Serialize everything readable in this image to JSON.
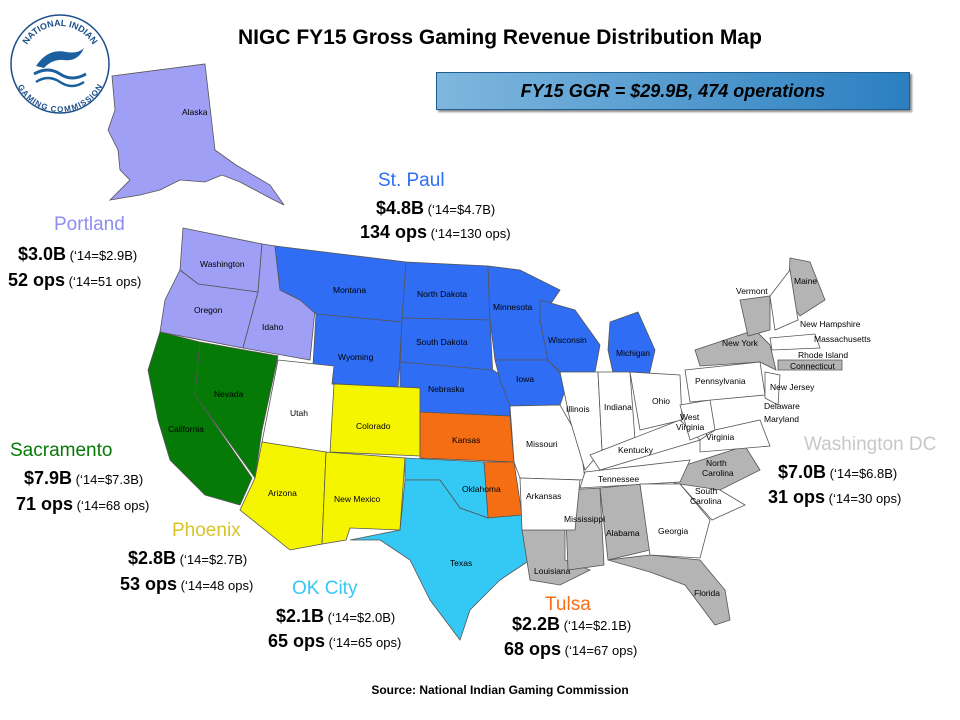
{
  "title": "NIGC FY15 Gross Gaming Revenue Distribution Map",
  "banner": "FY15 GGR = $29.9B, 474 operations",
  "source": "Source: National Indian Gaming Commission",
  "logo": {
    "top_text": "NATIONAL INDIAN",
    "bottom_text": "GAMING COMMISSION"
  },
  "colors": {
    "portland": "#9f9ff5",
    "st_paul": "#2f6df5",
    "sacramento": "#067a06",
    "phoenix": "#f5f500",
    "ok_city": "#34c9f5",
    "tulsa": "#f56e14",
    "washington_dc": "#b4b4b4",
    "unassigned": "#ffffff"
  },
  "regions": [
    {
      "id": "portland",
      "name": "Portland",
      "revenue": "$3.0B",
      "revenue_prior": "(‘14=$2.9B)",
      "ops": "52 ops",
      "ops_prior": "(‘14=51 ops)"
    },
    {
      "id": "st_paul",
      "name": "St. Paul",
      "revenue": "$4.8B",
      "revenue_prior": "(‘14=$4.7B)",
      "ops": "134 ops",
      "ops_prior": "(‘14=130 ops)"
    },
    {
      "id": "sacramento",
      "name": "Sacramento",
      "revenue": "$7.9B",
      "revenue_prior": "(‘14=$7.3B)",
      "ops": "71 ops",
      "ops_prior": "(‘14=68 ops)"
    },
    {
      "id": "phoenix",
      "name": "Phoenix",
      "revenue": "$2.8B",
      "revenue_prior": "(‘14=$2.7B)",
      "ops": "53 ops",
      "ops_prior": "(‘14=48 ops)"
    },
    {
      "id": "ok_city",
      "name": "OK City",
      "revenue": "$2.1B",
      "revenue_prior": "(‘14=$2.0B)",
      "ops": "65 ops",
      "ops_prior": "(‘14=65 ops)"
    },
    {
      "id": "tulsa",
      "name": "Tulsa",
      "revenue": "$2.2B",
      "revenue_prior": "(‘14=$2.1B)",
      "ops": "68 ops",
      "ops_prior": "(‘14=67 ops)"
    },
    {
      "id": "washington_dc",
      "name": "Washington DC",
      "revenue": "$7.0B",
      "revenue_prior": "(‘14=$6.8B)",
      "ops": "31 ops",
      "ops_prior": "(‘14=30 ops)"
    }
  ],
  "states": {
    "alaska": "Alaska",
    "washington": "Washington",
    "oregon": "Oregon",
    "idaho": "Idaho",
    "montana": "Montana",
    "north_dakota": "North Dakota",
    "south_dakota": "South Dakota",
    "minnesota": "Minnesota",
    "wisconsin": "Wisconsin",
    "michigan": "Michigan",
    "wyoming": "Wyoming",
    "nebraska": "Nebraska",
    "iowa": "Iowa",
    "nevada": "Nevada",
    "california": "California",
    "utah": "Utah",
    "colorado": "Colorado",
    "arizona": "Arizona",
    "new_mexico": "New Mexico",
    "kansas": "Kansas",
    "oklahoma": "Oklahoma",
    "texas": "Texas",
    "missouri": "Missouri",
    "arkansas": "Arkansas",
    "louisiana": "Louisiana",
    "illinois": "Illinois",
    "indiana": "Indiana",
    "ohio": "Ohio",
    "kentucky": "Kentucky",
    "tennessee": "Tennessee",
    "mississippi": "Mississippi",
    "alabama": "Alabama",
    "georgia": "Georgia",
    "florida": "Florida",
    "south_carolina_1": "South",
    "south_carolina_2": "Carolina",
    "north_carolina_1": "North",
    "north_carolina_2": "Carolina",
    "west_virginia_1": "West",
    "west_virginia_2": "Virginia",
    "virginia": "Virginia",
    "pennsylvania": "Pennsylvania",
    "new_york": "New York",
    "new_jersey": "New Jersey",
    "delaware": "Delaware",
    "maryland": "Maryland",
    "vermont": "Vermont",
    "maine": "Maine",
    "new_hampshire": "New Hampshire",
    "massachusetts": "Massachusetts",
    "rhode_island": "Rhode  Island",
    "connecticut": "Connecticut"
  }
}
